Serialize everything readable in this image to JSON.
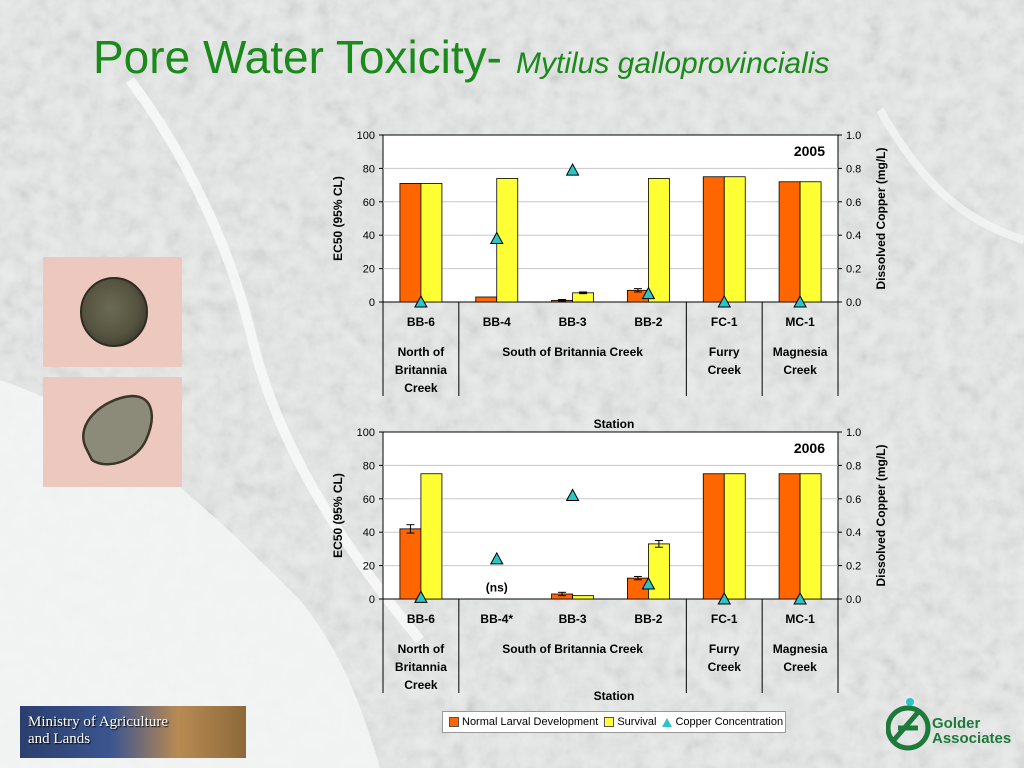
{
  "slide": {
    "title_main": "Pore Water Toxicity-",
    "title_species": "Mytilus galloprovincialis",
    "logo_left_text_1": "Ministry of Agriculture",
    "logo_left_text_2": "and Lands",
    "logo_right_text_1": "Golder",
    "logo_right_text_2": "Associates"
  },
  "legend": {
    "items": [
      {
        "label": "Normal Larval Development",
        "color": "#ff6600"
      },
      {
        "label": "Survival",
        "color": "#ffff33"
      },
      {
        "label": "Copper Concentration",
        "color": "#2cc4c4"
      }
    ]
  },
  "chart_data": [
    {
      "type": "bar",
      "year_label": "2005",
      "categories": [
        "BB-6",
        "BB-4",
        "BB-3",
        "BB-2",
        "FC-1",
        "MC-1"
      ],
      "groups": [
        {
          "lines": [
            "North of",
            "Britannia",
            "Creek"
          ],
          "span": [
            0,
            0
          ]
        },
        {
          "lines": [
            "South of Britannia Creek"
          ],
          "span": [
            1,
            3
          ]
        },
        {
          "lines": [
            "Furry",
            "Creek"
          ],
          "span": [
            4,
            4
          ]
        },
        {
          "lines": [
            "Magnesia",
            "Creek"
          ],
          "span": [
            5,
            5
          ]
        }
      ],
      "series": [
        {
          "name": "Normal Larval Development",
          "values": [
            71,
            3,
            1,
            7,
            75,
            72
          ],
          "errors": [
            0,
            0,
            0.5,
            1,
            0,
            0
          ]
        },
        {
          "name": "Survival",
          "values": [
            71,
            74,
            5.5,
            74,
            75,
            72
          ],
          "errors": [
            0,
            0,
            0.5,
            0,
            0,
            0
          ]
        },
        {
          "name": "Copper Concentration",
          "axis": "right",
          "values": [
            0.0,
            0.38,
            0.79,
            0.05,
            0.0,
            0.0
          ]
        }
      ],
      "ylabel": "EC50 (95% CL)",
      "ylabel_right": "Dissolved Copper (mg/L)",
      "xlabel": "Station",
      "ylim": [
        0,
        100
      ],
      "yticks": [
        "0",
        "20",
        "40",
        "60",
        "80",
        "100"
      ],
      "ylim_right": [
        0,
        1.0
      ],
      "yticks_right": [
        "0.0",
        "0.2",
        "0.4",
        "0.6",
        "0.8",
        "1.0"
      ],
      "annotations": []
    },
    {
      "type": "bar",
      "year_label": "2006",
      "categories": [
        "BB-6",
        "BB-4*",
        "BB-3",
        "BB-2",
        "FC-1",
        "MC-1"
      ],
      "groups": [
        {
          "lines": [
            "North of",
            "Britannia",
            "Creek"
          ],
          "span": [
            0,
            0
          ]
        },
        {
          "lines": [
            "South of Britannia Creek"
          ],
          "span": [
            1,
            3
          ]
        },
        {
          "lines": [
            "Furry",
            "Creek"
          ],
          "span": [
            4,
            4
          ]
        },
        {
          "lines": [
            "Magnesia",
            "Creek"
          ],
          "span": [
            5,
            5
          ]
        }
      ],
      "series": [
        {
          "name": "Normal Larval Development",
          "values": [
            42,
            0,
            3,
            12.5,
            75,
            75
          ],
          "errors": [
            2.5,
            0,
            1,
            1,
            0,
            0
          ]
        },
        {
          "name": "Survival",
          "values": [
            75,
            0,
            2,
            33,
            75,
            75
          ],
          "errors": [
            0,
            0,
            0,
            2,
            0,
            0
          ]
        },
        {
          "name": "Copper Concentration",
          "axis": "right",
          "values": [
            0.01,
            0.24,
            0.62,
            0.09,
            0.0,
            0.0
          ]
        }
      ],
      "ylabel": "EC50 (95% CL)",
      "ylabel_right": "Dissolved Copper (mg/L)",
      "xlabel": "Station",
      "ylim": [
        0,
        100
      ],
      "yticks": [
        "0",
        "20",
        "40",
        "60",
        "80",
        "100"
      ],
      "ylim_right": [
        0,
        1.0
      ],
      "yticks_right": [
        "0.0",
        "0.2",
        "0.4",
        "0.6",
        "0.8",
        "1.0"
      ],
      "annotations": [
        {
          "text": "(ns)",
          "category_index": 1,
          "y": 7
        }
      ]
    }
  ]
}
